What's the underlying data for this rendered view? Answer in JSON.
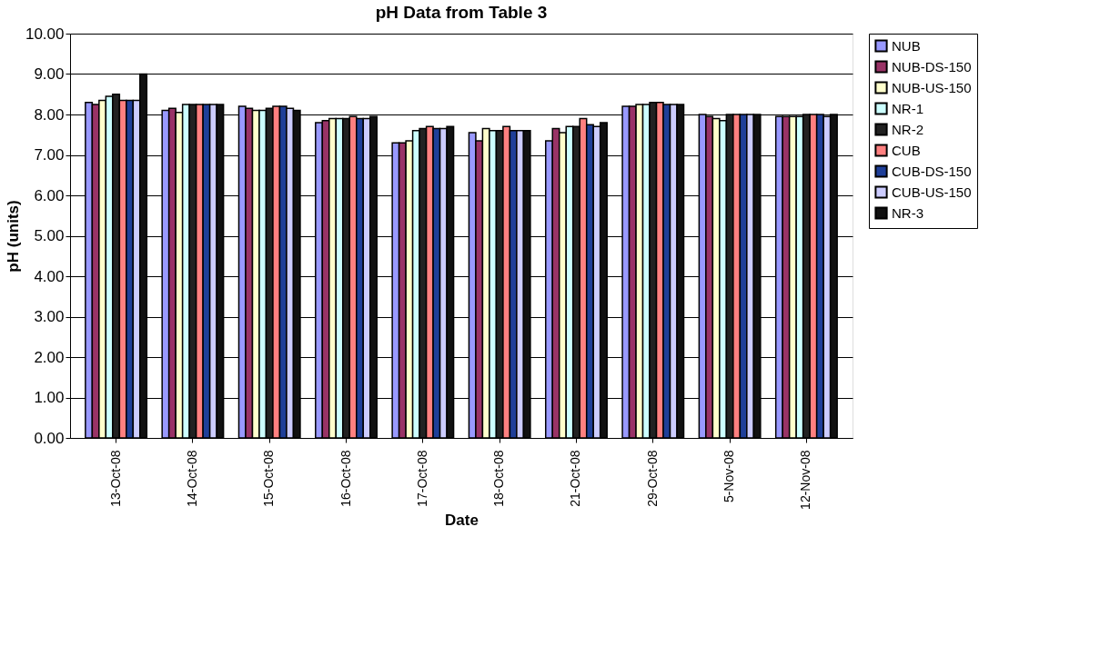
{
  "chart_data": {
    "type": "bar",
    "title": "pH Data from Table 3",
    "xlabel": "Date",
    "ylabel": "pH (units)",
    "categories": [
      "13-Oct-08",
      "14-Oct-08",
      "15-Oct-08",
      "16-Oct-08",
      "17-Oct-08",
      "18-Oct-08",
      "21-Oct-08",
      "29-Oct-08",
      "5-Nov-08",
      "12-Nov-08"
    ],
    "series": [
      {
        "name": "NUB",
        "color": "#9999ff",
        "values": [
          8.3,
          8.1,
          8.2,
          7.8,
          7.3,
          7.55,
          7.35,
          8.2,
          8.0,
          7.95
        ]
      },
      {
        "name": "NUB-DS-150",
        "color": "#993366",
        "values": [
          8.25,
          8.15,
          8.15,
          7.85,
          7.3,
          7.35,
          7.65,
          8.2,
          7.95,
          7.95
        ]
      },
      {
        "name": "NUB-US-150",
        "color": "#ffffcc",
        "values": [
          8.35,
          8.05,
          8.1,
          7.9,
          7.35,
          7.65,
          7.55,
          8.25,
          7.9,
          7.95
        ]
      },
      {
        "name": "NR-1",
        "color": "#ccffff",
        "values": [
          8.45,
          8.25,
          8.1,
          7.9,
          7.6,
          7.6,
          7.7,
          8.25,
          7.85,
          7.95
        ]
      },
      {
        "name": "NR-2",
        "color": "#222222",
        "values": [
          8.5,
          8.25,
          8.15,
          7.9,
          7.65,
          7.6,
          7.7,
          8.3,
          8.0,
          8.0
        ]
      },
      {
        "name": "CUB",
        "color": "#ff8080",
        "values": [
          8.35,
          8.25,
          8.2,
          7.95,
          7.7,
          7.7,
          7.9,
          8.3,
          8.0,
          8.0
        ]
      },
      {
        "name": "CUB-DS-150",
        "color": "#1f3f99",
        "values": [
          8.35,
          8.25,
          8.2,
          7.9,
          7.65,
          7.6,
          7.75,
          8.25,
          8.0,
          8.0
        ]
      },
      {
        "name": "CUB-US-150",
        "color": "#ccccff",
        "values": [
          8.35,
          8.25,
          8.15,
          7.9,
          7.65,
          7.6,
          7.7,
          8.25,
          8.0,
          7.95
        ]
      },
      {
        "name": "NR-3",
        "color": "#111111",
        "values": [
          9.0,
          8.25,
          8.1,
          7.95,
          7.7,
          7.6,
          7.8,
          8.25,
          8.0,
          8.0
        ]
      }
    ],
    "ylim": [
      0,
      10
    ],
    "yticks": [
      {
        "value": 0,
        "label": "0.00"
      },
      {
        "value": 1,
        "label": "1.00"
      },
      {
        "value": 2,
        "label": "2.00"
      },
      {
        "value": 3,
        "label": "3.00"
      },
      {
        "value": 4,
        "label": "4.00"
      },
      {
        "value": 5,
        "label": "5.00"
      },
      {
        "value": 6,
        "label": "6.00"
      },
      {
        "value": 7,
        "label": "7.00"
      },
      {
        "value": 8,
        "label": "8.00"
      },
      {
        "value": 9,
        "label": "9.00"
      },
      {
        "value": 10,
        "label": "10.00"
      }
    ],
    "grid": "y",
    "legend": "right"
  }
}
